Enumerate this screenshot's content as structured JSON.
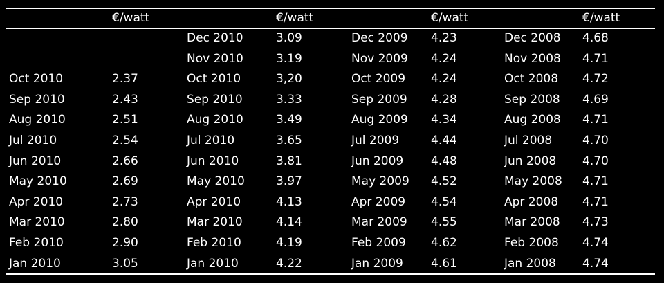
{
  "header": [
    "",
    "€/watt",
    "",
    "€/watt",
    "",
    "€/watt",
    "",
    "€/watt"
  ],
  "rows": [
    [
      "",
      "",
      "Dec 2010",
      "3.09",
      "Dec 2009",
      "4.23",
      "Dec 2008",
      "4.68"
    ],
    [
      "",
      "",
      "Nov 2010",
      "3.19",
      "Nov 2009",
      "4.24",
      "Nov 2008",
      "4.71"
    ],
    [
      "Oct 2010",
      "2.37",
      "Oct 2010",
      "3,20",
      "Oct 2009",
      "4.24",
      "Oct 2008",
      "4.72"
    ],
    [
      "Sep 2010",
      "2.43",
      "Sep 2010",
      "3.33",
      "Sep 2009",
      "4.28",
      "Sep 2008",
      "4.69"
    ],
    [
      "Aug 2010",
      "2.51",
      "Aug 2010",
      "3.49",
      "Aug 2009",
      "4.34",
      "Aug 2008",
      "4.71"
    ],
    [
      "Jul 2010",
      "2.54",
      "Jul 2010",
      "3.65",
      "Jul 2009",
      "4.44",
      "Jul 2008",
      "4.70"
    ],
    [
      "Jun 2010",
      "2.66",
      "Jun 2010",
      "3.81",
      "Jun 2009",
      "4.48",
      "Jun 2008",
      "4.70"
    ],
    [
      "May 2010",
      "2.69",
      "May 2010",
      "3.97",
      "May 2009",
      "4.52",
      "May 2008",
      "4.71"
    ],
    [
      "Apr 2010",
      "2.73",
      "Apr 2010",
      "4.13",
      "Apr 2009",
      "4.54",
      "Apr 2008",
      "4.71"
    ],
    [
      "Mar 2010",
      "2.80",
      "Mar 2010",
      "4.14",
      "Mar 2009",
      "4.55",
      "Mar 2008",
      "4.73"
    ],
    [
      "Feb 2010",
      "2.90",
      "Feb 2010",
      "4.19",
      "Feb 2009",
      "4.62",
      "Feb 2008",
      "4.74"
    ],
    [
      "Jan 2010",
      "3.05",
      "Jan 2010",
      "4.22",
      "Jan 2009",
      "4.61",
      "Jan 2008",
      "4.74"
    ]
  ],
  "colors": {
    "background": "#000000",
    "text": "#ffffff",
    "rule": "#ffffff"
  }
}
